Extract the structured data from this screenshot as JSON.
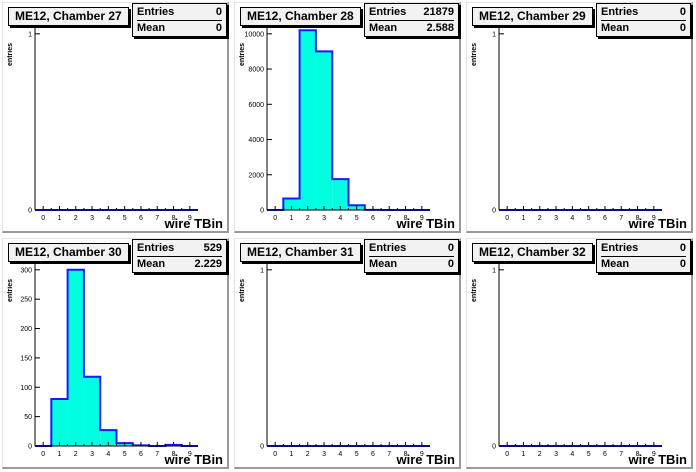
{
  "chart_data": [
    {
      "type": "bar",
      "title": "ME12, Chamber 27",
      "stats": {
        "entries_label": "Entries",
        "entries": "0",
        "mean_label": "Mean",
        "mean": "0"
      },
      "xlabel": "wire TBin",
      "ylabel": "entries",
      "xlim": [
        -0.5,
        9.5
      ],
      "ylim": [
        0,
        1.05
      ],
      "xticks": [
        0,
        1,
        2,
        3,
        4,
        5,
        6,
        7,
        8,
        9
      ],
      "yticks": [
        0,
        1
      ],
      "ytick_labels": [
        "0",
        "1"
      ],
      "bins": [
        0,
        1,
        2,
        3,
        4,
        5,
        6,
        7,
        8,
        9
      ],
      "values": [
        0,
        0,
        0,
        0,
        0,
        0,
        0,
        0,
        0,
        0
      ]
    },
    {
      "type": "bar",
      "title": "ME12, Chamber 28",
      "stats": {
        "entries_label": "Entries",
        "entries": "21879",
        "mean_label": "Mean",
        "mean": "2.588"
      },
      "xlabel": "wire TBin",
      "ylabel": "entries",
      "xlim": [
        -0.5,
        9.5
      ],
      "ylim": [
        0,
        10500
      ],
      "xticks": [
        0,
        1,
        2,
        3,
        4,
        5,
        6,
        7,
        8,
        9
      ],
      "yticks": [
        0,
        2000,
        4000,
        6000,
        8000,
        10000
      ],
      "ytick_labels": [
        "0",
        "2000",
        "4000",
        "6000",
        "8000",
        "10000"
      ],
      "bins": [
        0,
        1,
        2,
        3,
        4,
        5,
        6,
        7,
        8,
        9
      ],
      "values": [
        0,
        650,
        10200,
        9000,
        1750,
        270,
        9,
        0,
        0,
        0
      ]
    },
    {
      "type": "bar",
      "title": "ME12, Chamber 29",
      "stats": {
        "entries_label": "Entries",
        "entries": "0",
        "mean_label": "Mean",
        "mean": "0"
      },
      "xlabel": "wire TBin",
      "ylabel": "entries",
      "xlim": [
        -0.5,
        9.5
      ],
      "ylim": [
        0,
        1.05
      ],
      "xticks": [
        0,
        1,
        2,
        3,
        4,
        5,
        6,
        7,
        8,
        9
      ],
      "yticks": [
        0,
        1
      ],
      "ytick_labels": [
        "0",
        "1"
      ],
      "bins": [
        0,
        1,
        2,
        3,
        4,
        5,
        6,
        7,
        8,
        9
      ],
      "values": [
        0,
        0,
        0,
        0,
        0,
        0,
        0,
        0,
        0,
        0
      ]
    },
    {
      "type": "bar",
      "title": "ME12, Chamber 30",
      "stats": {
        "entries_label": "Entries",
        "entries": "529",
        "mean_label": "Mean",
        "mean": "2.229"
      },
      "xlabel": "wire TBin",
      "ylabel": "entries",
      "xlim": [
        -0.5,
        9.5
      ],
      "ylim": [
        0,
        315
      ],
      "xticks": [
        0,
        1,
        2,
        3,
        4,
        5,
        6,
        7,
        8,
        9
      ],
      "yticks": [
        0,
        50,
        100,
        150,
        200,
        250,
        300
      ],
      "ytick_labels": [
        "0",
        "50",
        "100",
        "150",
        "200",
        "250",
        "300"
      ],
      "bins": [
        0,
        1,
        2,
        3,
        4,
        5,
        6,
        7,
        8,
        9
      ],
      "values": [
        0,
        80,
        300,
        118,
        27,
        5,
        1,
        0,
        2,
        0
      ]
    },
    {
      "type": "bar",
      "title": "ME12, Chamber 31",
      "stats": {
        "entries_label": "Entries",
        "entries": "0",
        "mean_label": "Mean",
        "mean": "0"
      },
      "xlabel": "wire TBin",
      "ylabel": "entries",
      "xlim": [
        -0.5,
        9.5
      ],
      "ylim": [
        0,
        1.05
      ],
      "xticks": [
        0,
        1,
        2,
        3,
        4,
        5,
        6,
        7,
        8,
        9
      ],
      "yticks": [
        0,
        1
      ],
      "ytick_labels": [
        "0",
        "1"
      ],
      "bins": [
        0,
        1,
        2,
        3,
        4,
        5,
        6,
        7,
        8,
        9
      ],
      "values": [
        0,
        0,
        0,
        0,
        0,
        0,
        0,
        0,
        0,
        0
      ]
    },
    {
      "type": "bar",
      "title": "ME12, Chamber 32",
      "stats": {
        "entries_label": "Entries",
        "entries": "0",
        "mean_label": "Mean",
        "mean": "0"
      },
      "xlabel": "wire TBin",
      "ylabel": "entries",
      "xlim": [
        -0.5,
        9.5
      ],
      "ylim": [
        0,
        1.05
      ],
      "xticks": [
        0,
        1,
        2,
        3,
        4,
        5,
        6,
        7,
        8,
        9
      ],
      "yticks": [
        0,
        1
      ],
      "ytick_labels": [
        "0",
        "1"
      ],
      "bins": [
        0,
        1,
        2,
        3,
        4,
        5,
        6,
        7,
        8,
        9
      ],
      "values": [
        0,
        0,
        0,
        0,
        0,
        0,
        0,
        0,
        0,
        0
      ]
    }
  ],
  "style": {
    "fill_color": "#00ffe0",
    "line_color": "#1a1aff",
    "axis_color": "#000000"
  }
}
